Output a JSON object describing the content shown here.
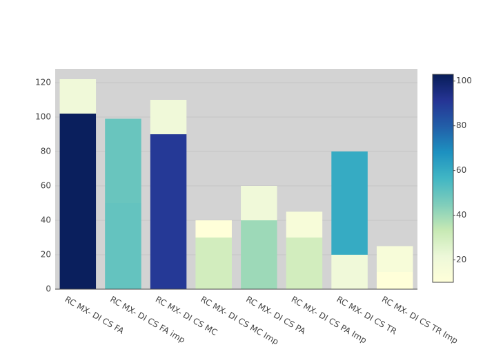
{
  "chart_data": {
    "type": "stacked_bar",
    "categories": [
      "RC MX- DI CS FA",
      "RC MX- DI CS FA imp",
      "RC MX- DI CS MC",
      "RC MX- DI CS MC Imp",
      "RC MX- DI CS PA",
      "RC MX- DI CS PA Imp",
      "RC MX- DI CS TR",
      "RC MX- DI CS TR Imp"
    ],
    "series": [
      {
        "values": [
          102,
          50,
          90,
          30,
          40,
          30,
          20,
          10
        ]
      },
      {
        "values": [
          20,
          49,
          20,
          10,
          20,
          15,
          60,
          15
        ]
      }
    ],
    "ylim": [
      0,
      128
    ],
    "yticks": [
      0,
      20,
      40,
      60,
      80,
      100,
      120
    ],
    "grid": true,
    "colorscale": [
      "#ffffd9",
      "#edf8d9",
      "#c7e9b4",
      "#7fcdbb",
      "#41b6c4",
      "#1d91c0",
      "#225ea8",
      "#253494",
      "#081d58"
    ],
    "clim": [
      10,
      103
    ],
    "colorbar_ticks": [
      20,
      40,
      60,
      80,
      100
    ]
  }
}
